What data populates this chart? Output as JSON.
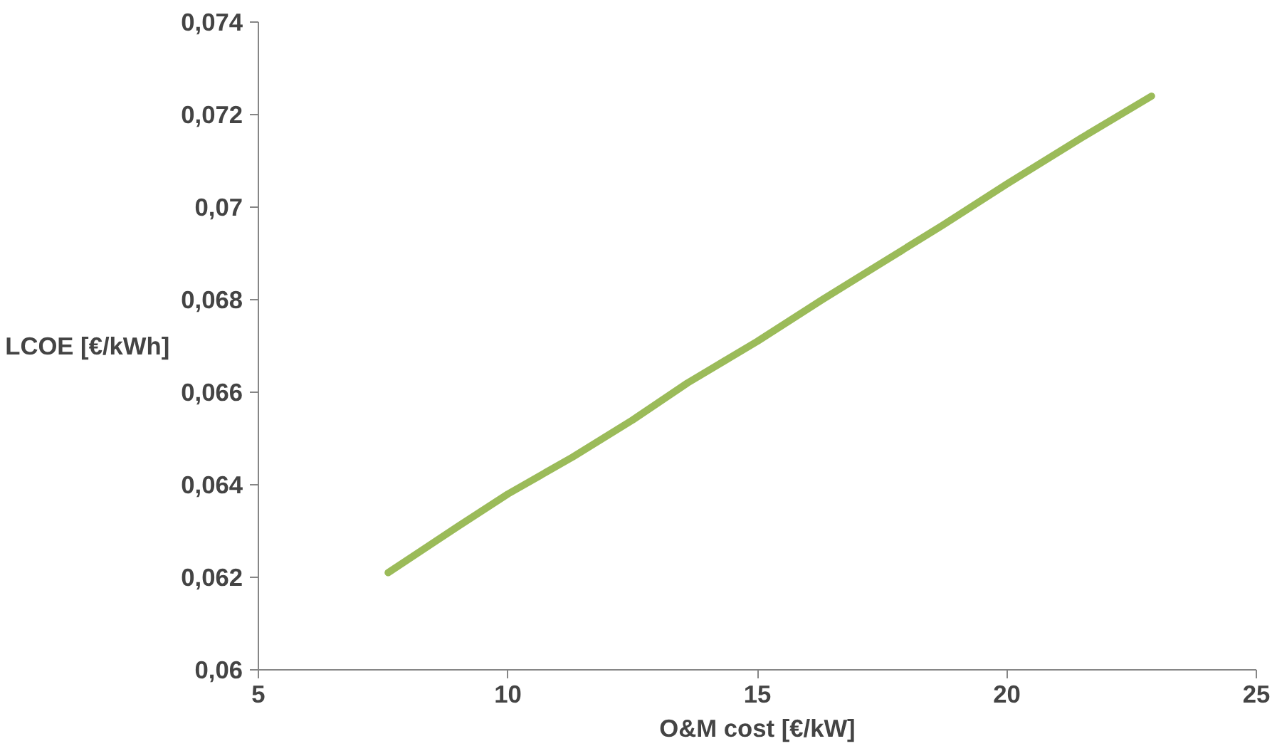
{
  "chart_data": {
    "type": "line",
    "xlabel": "O&M cost [€/kW]",
    "ylabel": "LCOE [€/kWh]",
    "x": [
      7.6,
      9.0,
      10.0,
      11.3,
      12.5,
      13.6,
      15.0,
      16.3,
      17.5,
      18.7,
      20.0,
      21.5,
      22.9
    ],
    "series": [
      {
        "color": "#9bbb59",
        "values": [
          0.0621,
          0.0631,
          0.0638,
          0.0646,
          0.0654,
          0.0662,
          0.0671,
          0.068,
          0.0688,
          0.0696,
          0.0705,
          0.0715,
          0.0724
        ]
      }
    ],
    "xlim": [
      5,
      25
    ],
    "xticks": [
      5,
      10,
      15,
      20,
      25
    ],
    "ylim": [
      0.06,
      0.074
    ],
    "yticks": [
      {
        "value": 0.06,
        "label": "0,06"
      },
      {
        "value": 0.062,
        "label": "0,062"
      },
      {
        "value": 0.064,
        "label": "0,064"
      },
      {
        "value": 0.066,
        "label": "0,066"
      },
      {
        "value": 0.068,
        "label": "0,068"
      },
      {
        "value": 0.07,
        "label": "0,07"
      },
      {
        "value": 0.072,
        "label": "0,072"
      },
      {
        "value": 0.074,
        "label": "0,074"
      }
    ],
    "grid": false,
    "marker": "none",
    "line_style": "solid"
  }
}
